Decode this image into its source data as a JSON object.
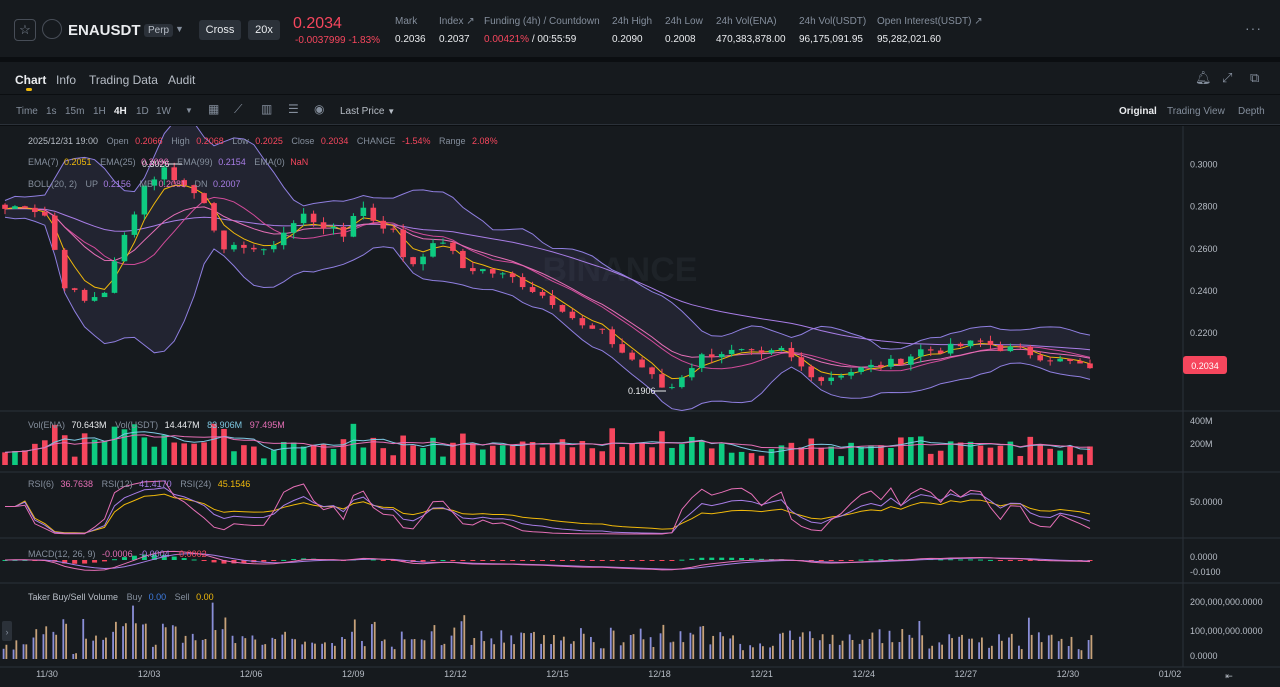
{
  "header": {
    "symbol": "ENAUSDT",
    "contract_type": "Perp",
    "margin_mode": "Cross",
    "leverage": "20x",
    "last_price": "0.2034",
    "change_abs": "-0.0037999",
    "change_pct": "-1.83%",
    "stats": [
      {
        "label": "Mark",
        "value": "0.2036"
      },
      {
        "label": "Index ↗",
        "value": "0.2037"
      },
      {
        "label": "Funding (4h) / Countdown",
        "value_red": "0.00421%",
        "value": " / 00:55:59"
      },
      {
        "label": "24h High",
        "value": "0.2090"
      },
      {
        "label": "24h Low",
        "value": "0.2008"
      },
      {
        "label": "24h Vol(ENA)",
        "value": "470,383,878.00"
      },
      {
        "label": "24h Vol(USDT)",
        "value": "96,175,091.95"
      },
      {
        "label": "Open Interest(USDT) ↗",
        "value": "95,282,021.60"
      }
    ]
  },
  "tabs": [
    "Chart",
    "Info",
    "Trading Data",
    "Audit"
  ],
  "toolbar": {
    "timeframes": [
      "Time",
      "1s",
      "15m",
      "1H",
      "4H",
      "1D",
      "1W"
    ],
    "active_timeframe": "4H",
    "price_type": "Last Price",
    "views": [
      "Original",
      "Trading View",
      "Depth"
    ],
    "active_view": "Original"
  },
  "colors": {
    "up": "#0ecb81",
    "down": "#f6465d",
    "accent": "#f0b90b",
    "ema7": "#f0b90b",
    "ema25": "#e56fb6",
    "ema99": "#a87de6",
    "boll": "#8f7fe0"
  },
  "legend": {
    "ohlc": {
      "date": "2025/12/31 19:00",
      "open_label": "Open",
      "open": "0.2066",
      "high_label": "High",
      "high": "0.2068",
      "low_label": "Low",
      "low": "0.2025",
      "close_label": "Close",
      "close": "0.2034",
      "change_label": "CHANGE",
      "change": "-1.54%",
      "range_label": "Range",
      "range": "2.08%"
    },
    "ema": {
      "ema7_label": "EMA(7)",
      "ema7": "0.2051",
      "ema25_label": "EMA(25)",
      "ema25": "0.2096",
      "ema99_label": "EMA(99)",
      "ema99": "0.2154",
      "ema0_label": "EMA(0)",
      "ema0": "NaN"
    },
    "boll": {
      "label": "BOLL(20, 2)",
      "up_label": "UP",
      "up": "0.2156",
      "mb_label": "MB",
      "mb": "0.2081",
      "dn_label": "DN",
      "dn": "0.2007"
    },
    "vol": {
      "ena_label": "Vol(ENA)",
      "ena": "70.643M",
      "usdt_label": "Vol(USDT)",
      "usdt": "14.447M",
      "ma1": "83.906M",
      "ma2": "97.495M"
    },
    "rsi": {
      "rsi6_label": "RSI(6)",
      "rsi6": "36.7638",
      "rsi12_label": "RSI(12)",
      "rsi12": "41.4170",
      "rsi24_label": "RSI(24)",
      "rsi24": "45.1546"
    },
    "macd": {
      "label": "MACD(12, 26, 9)",
      "v1": "-0.0006",
      "v2": "-0.0004",
      "v3": "-0.0002"
    },
    "taker": {
      "label": "Taker Buy/Sell Volume",
      "buy_label": "Buy",
      "buy": "0.00",
      "sell_label": "Sell",
      "sell": "0.00"
    }
  },
  "chart_data": {
    "type": "candlestick",
    "interval": "4H",
    "x_ticks": [
      "11/30",
      "12/03",
      "12/06",
      "12/09",
      "12/12",
      "12/15",
      "12/18",
      "12/21",
      "12/24",
      "12/27",
      "12/30",
      "01/02"
    ],
    "price_axis": {
      "ticks": [
        0.3,
        0.28,
        0.26,
        0.24,
        0.22
      ],
      "tick_labels": [
        "0.3000",
        "0.2800",
        "0.2600",
        "0.2400",
        "0.2200"
      ],
      "range": [
        0.1845,
        0.3145
      ]
    },
    "annotations": {
      "max": "0.3026",
      "min": "0.1906",
      "last_price_tag": "0.2034"
    },
    "close_path": [
      {
        "x": 0,
        "close": 0.279
      },
      {
        "x": 2,
        "close": 0.281
      },
      {
        "x": 4,
        "close": 0.276
      },
      {
        "x": 6,
        "close": 0.243
      },
      {
        "x": 8,
        "close": 0.235
      },
      {
        "x": 10,
        "close": 0.24
      },
      {
        "x": 12,
        "close": 0.266
      },
      {
        "x": 14,
        "close": 0.29
      },
      {
        "x": 16,
        "close": 0.298
      },
      {
        "x": 18,
        "close": 0.29
      },
      {
        "x": 20,
        "close": 0.283
      },
      {
        "x": 22,
        "close": 0.258
      },
      {
        "x": 24,
        "close": 0.262
      },
      {
        "x": 26,
        "close": 0.258
      },
      {
        "x": 28,
        "close": 0.268
      },
      {
        "x": 30,
        "close": 0.276
      },
      {
        "x": 32,
        "close": 0.271
      },
      {
        "x": 34,
        "close": 0.266
      },
      {
        "x": 35.5,
        "close": 0.282
      },
      {
        "x": 37,
        "close": 0.274
      },
      {
        "x": 39,
        "close": 0.268
      },
      {
        "x": 40.5,
        "close": 0.251
      },
      {
        "x": 42,
        "close": 0.258
      },
      {
        "x": 44,
        "close": 0.264
      },
      {
        "x": 46,
        "close": 0.251
      },
      {
        "x": 48,
        "close": 0.25
      },
      {
        "x": 51,
        "close": 0.246
      },
      {
        "x": 54,
        "close": 0.238
      },
      {
        "x": 56,
        "close": 0.232
      },
      {
        "x": 58,
        "close": 0.223
      },
      {
        "x": 60,
        "close": 0.22
      },
      {
        "x": 62,
        "close": 0.211
      },
      {
        "x": 64,
        "close": 0.204
      },
      {
        "x": 66.5,
        "close": 0.192
      },
      {
        "x": 68,
        "close": 0.2
      },
      {
        "x": 70,
        "close": 0.209
      },
      {
        "x": 72,
        "close": 0.211
      },
      {
        "x": 74,
        "close": 0.211
      },
      {
        "x": 76,
        "close": 0.209
      },
      {
        "x": 78,
        "close": 0.212
      },
      {
        "x": 80,
        "close": 0.204
      },
      {
        "x": 82,
        "close": 0.198
      },
      {
        "x": 84,
        "close": 0.201
      },
      {
        "x": 86,
        "close": 0.203
      },
      {
        "x": 88,
        "close": 0.205
      },
      {
        "x": 90,
        "close": 0.207
      },
      {
        "x": 92,
        "close": 0.212
      },
      {
        "x": 94,
        "close": 0.212
      },
      {
        "x": 96,
        "close": 0.214
      },
      {
        "x": 98,
        "close": 0.216
      },
      {
        "x": 100,
        "close": 0.213
      },
      {
        "x": 102,
        "close": 0.212
      },
      {
        "x": 104,
        "close": 0.209
      },
      {
        "x": 106,
        "close": 0.207
      },
      {
        "x": 108,
        "close": 0.205
      },
      {
        "x": 109,
        "close": 0.2034
      }
    ],
    "volume_axis": {
      "ticks": [
        "400M",
        "200M"
      ]
    },
    "rsi_axis": {
      "ticks": [
        "50.0000"
      ]
    },
    "macd_axis": {
      "ticks": [
        "0.0000",
        "-0.0100"
      ]
    },
    "taker_axis": {
      "ticks": [
        "200,000,000.0000",
        "100,000,000.0000",
        "0.0000"
      ]
    }
  }
}
